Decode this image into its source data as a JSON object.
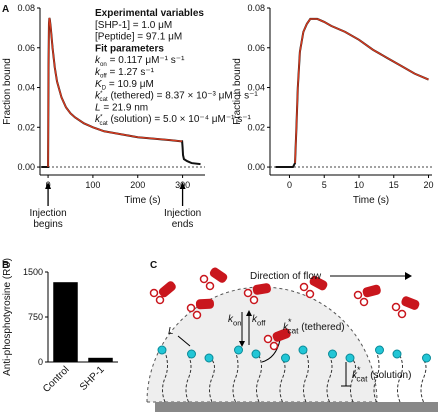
{
  "figure": {
    "panels": [
      "A",
      "B",
      "C"
    ]
  },
  "chart_data": [
    {
      "type": "line",
      "xlabel": "Time (s)",
      "ylabel": "Fraction bound",
      "x": [
        -15,
        -10,
        -5,
        0,
        1,
        2,
        3,
        4,
        6,
        8,
        10,
        15,
        20,
        30,
        40,
        50,
        60,
        80,
        100,
        125,
        150,
        175,
        200,
        225,
        250,
        275,
        295,
        299,
        300,
        301,
        303,
        310,
        320,
        340
      ],
      "series": [
        {
          "color": "#111111",
          "values": [
            0,
            0,
            0,
            0,
            0.05,
            0.072,
            0.075,
            0.074,
            0.07,
            0.065,
            0.06,
            0.05,
            0.043,
            0.035,
            0.03,
            0.027,
            0.025,
            0.022,
            0.02,
            0.018,
            0.017,
            0.016,
            0.015,
            0.0145,
            0.014,
            0.0135,
            0.013,
            0.013,
            0.01,
            0.006,
            0.004,
            0.003,
            0.002,
            0.0015
          ]
        },
        {
          "color": "#d73a1f",
          "values": [
            null,
            null,
            null,
            0,
            0.05,
            0.072,
            0.075,
            0.074,
            0.07,
            0.065,
            0.06,
            0.05,
            0.043,
            0.035,
            0.03,
            0.027,
            0.025,
            0.022,
            0.02,
            0.018,
            0.017,
            0.016,
            0.015,
            0.0145,
            0.014,
            0.0135,
            0.013,
            0.013,
            null,
            null,
            null,
            null,
            null,
            null
          ]
        }
      ],
      "xlim": [
        -18,
        350
      ],
      "xticks": [
        0,
        100,
        200,
        300
      ],
      "ylim": [
        -0.004,
        0.08
      ],
      "yticks": [
        {
          "value": 0,
          "label": "0.00"
        },
        {
          "value": 0.02,
          "label": "0.02"
        },
        {
          "value": 0.04,
          "label": "0.04"
        },
        {
          "value": 0.06,
          "label": "0.06"
        },
        {
          "value": 0.08,
          "label": "0.08"
        }
      ],
      "reference_line": 0,
      "annotations": [
        {
          "text": "Experimental variables",
          "bold": true
        },
        {
          "text": "[SHP-1] = 1.0 μM"
        },
        {
          "text": "[Peptide] = 97.1 μM"
        },
        {
          "text": "Fit parameters",
          "bold": true
        },
        {
          "k": "k",
          "sub": "on",
          "text": " = 0.117 μM⁻¹ s⁻¹"
        },
        {
          "k": "k",
          "sub": "off",
          "text": " = 1.27 s⁻¹"
        },
        {
          "k": "K",
          "sub": "D",
          "text": " = 10.9 μM"
        },
        {
          "k": "k",
          "sup": "*",
          "sub": "cat",
          "text": " (tethered) = 8.37 × 10⁻³ μM⁻¹ s⁻¹"
        },
        {
          "k": "L",
          "text": " = 21.9 nm"
        },
        {
          "k": "k",
          "sup": "*",
          "sub": "cat",
          "text": " (solution) = 5.0 × 10⁻⁴ μM⁻¹ s⁻¹"
        }
      ],
      "markers": [
        {
          "x": 0,
          "lines": [
            "Injection",
            "begins"
          ]
        },
        {
          "x": 300,
          "lines": [
            "Injection",
            "ends"
          ]
        }
      ]
    },
    {
      "type": "line",
      "xlabel": "Time (s)",
      "ylabel": "Fraction bound",
      "x": [
        -2,
        -1,
        0,
        0.5,
        0.8,
        1,
        1.2,
        1.5,
        2,
        2.5,
        3,
        4,
        5,
        6,
        8,
        10,
        12,
        14,
        16,
        18,
        20
      ],
      "series": [
        {
          "color": "#111111",
          "values": [
            0,
            0,
            0,
            0,
            0.002,
            0.02,
            0.04,
            0.058,
            0.068,
            0.072,
            0.0745,
            0.0745,
            0.073,
            0.071,
            0.068,
            0.064,
            0.059,
            0.055,
            0.051,
            0.047,
            0.044
          ]
        },
        {
          "color": "#d73a1f",
          "values": [
            null,
            null,
            null,
            null,
            0.002,
            0.02,
            0.04,
            0.058,
            0.068,
            0.072,
            0.0745,
            0.0745,
            0.073,
            0.071,
            0.068,
            0.064,
            0.059,
            0.055,
            0.051,
            0.047,
            0.044
          ]
        }
      ],
      "xlim": [
        -2.8,
        20.5
      ],
      "xticks": [
        0,
        5,
        10,
        15,
        20
      ],
      "ylim": [
        -0.004,
        0.08
      ],
      "yticks": [
        {
          "value": 0,
          "label": "0.00"
        },
        {
          "value": 0.02,
          "label": "0.02"
        },
        {
          "value": 0.04,
          "label": "0.04"
        },
        {
          "value": 0.06,
          "label": "0.06"
        },
        {
          "value": 0.08,
          "label": "0.08"
        }
      ],
      "reference_line": 0
    },
    {
      "type": "bar",
      "ylabel": "Anti-phosphotyrosine (RU)",
      "categories": [
        "Control",
        "SHP-1"
      ],
      "values": [
        1330,
        70
      ],
      "color": "#000000",
      "ylim": [
        0,
        1500
      ],
      "yticks": [
        0,
        750,
        1500
      ]
    }
  ],
  "diagram": {
    "flow": "Direction of flow",
    "L": "L",
    "kon": {
      "k": "k",
      "sub": "on"
    },
    "koff": {
      "k": "k",
      "sub": "off"
    },
    "kcat_tethered": {
      "k": "k",
      "sup": "*",
      "sub": "cat",
      "text": " (tethered)"
    },
    "kcat_solution": {
      "k": "k",
      "sup": "*",
      "sub": "cat",
      "text": " (solution)"
    }
  }
}
